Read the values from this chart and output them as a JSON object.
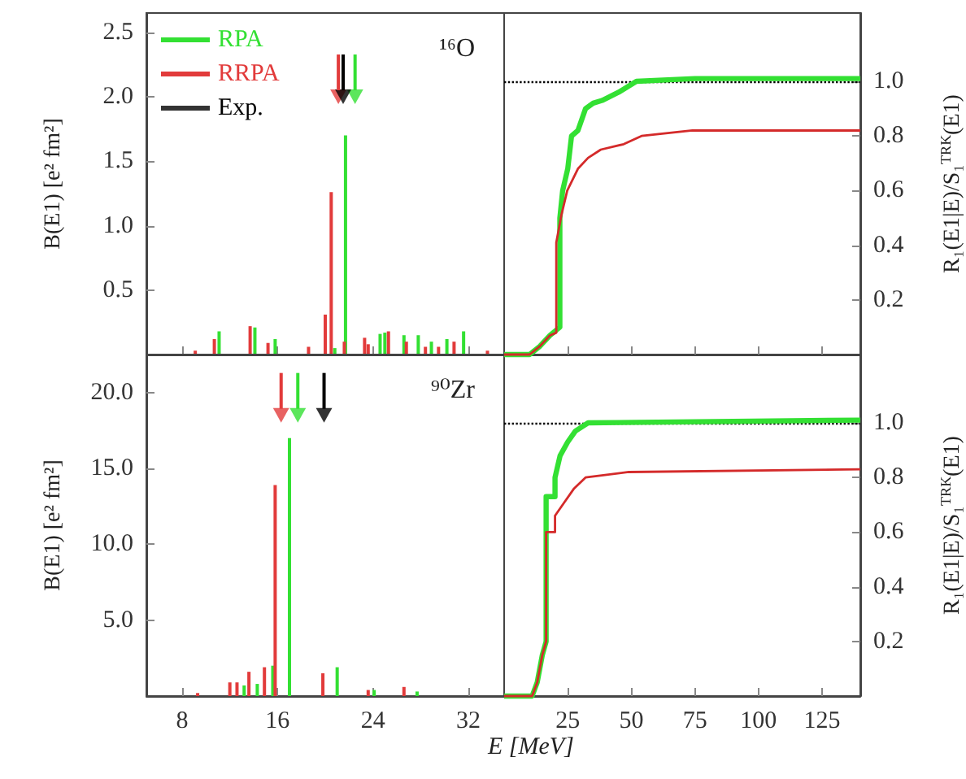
{
  "chart_data": [
    {
      "type": "bar",
      "legend": "top left",
      "ylabel": "B(E1) [e² fm²]",
      "annotations": [
        "¹⁶O"
      ],
      "tick_labels": "y",
      "xlim": [
        5,
        35
      ],
      "xticks": [
        8,
        16,
        24,
        32
      ],
      "ylim": [
        0,
        2.65
      ],
      "yticks": [
        0.5,
        {
          "value": 1,
          "label": "1.0"
        },
        1.5,
        {
          "value": 2,
          "label": "2.0"
        },
        2.5
      ],
      "series": [
        {
          "name": "RPA",
          "color": "#33e033",
          "x": [
            11.1,
            14.1,
            15.8,
            20.8,
            21.7,
            24.6,
            25.0,
            26.6,
            27.8,
            28.9,
            30.2,
            31.6
          ],
          "values": [
            0.18,
            0.21,
            0.12,
            0.05,
            1.7,
            0.16,
            0.17,
            0.15,
            0.15,
            0.1,
            0.12,
            0.18
          ]
        },
        {
          "name": "RRPA",
          "color": "#e23b3b",
          "x": [
            9.1,
            10.7,
            13.7,
            15.2,
            18.6,
            20.0,
            20.5,
            21.6,
            23.3,
            23.6,
            25.3,
            26.8,
            28.4,
            29.5,
            30.8,
            33.6
          ],
          "values": [
            0.03,
            0.12,
            0.22,
            0.09,
            0.06,
            0.31,
            1.26,
            0.1,
            0.13,
            0.08,
            0.18,
            0.1,
            0.06,
            0.06,
            0.1,
            0.03
          ]
        },
        {
          "type": "scatter",
          "marker": "triangle",
          "color": "#e23b3b",
          "x": [
            21.1
          ],
          "values": [
            2.0
          ]
        },
        {
          "type": "scatter",
          "marker": "triangle",
          "color": "#33e033",
          "x": [
            22.5
          ],
          "values": [
            2.0
          ]
        },
        {
          "name": "Exp.",
          "type": "scatter",
          "marker": "triangle",
          "color": "#000000",
          "x": [
            21.5
          ],
          "values": [
            2.0
          ]
        }
      ]
    },
    {
      "type": "line",
      "ylabel": "R₁(E1|E)/S₁$^{TRK}$(E1)",
      "tick_labels": "y",
      "xlim": [
        0,
        140
      ],
      "xticks": [
        25,
        50,
        75,
        100,
        125
      ],
      "ylim": [
        0,
        1.25
      ],
      "yticks": [
        0.2,
        0.4,
        0.6,
        0.8,
        {
          "value": 1,
          "label": "1.0"
        }
      ],
      "ref_lines": [
        {
          "axis": "y",
          "value": 1,
          "color": "#000000",
          "line_style": "dotted"
        }
      ],
      "series": [
        {
          "color": "#33e033",
          "x": [
            0,
            10,
            14,
            18,
            21.9,
            21.9,
            23,
            25,
            26.5,
            29,
            32,
            35,
            38.5,
            45,
            52,
            75,
            140
          ],
          "values": [
            0,
            0,
            0.03,
            0.07,
            0.1,
            0.5,
            0.6,
            0.68,
            0.8,
            0.82,
            0.9,
            0.92,
            0.93,
            0.96,
            1.0,
            1.01,
            1.01
          ]
        },
        {
          "color": "#d42a2a",
          "x": [
            0,
            10,
            14,
            18,
            20.5,
            20.5,
            22.5,
            24.8,
            29,
            33,
            38,
            47,
            54,
            74,
            140
          ],
          "values": [
            0,
            0,
            0.03,
            0.07,
            0.08,
            0.41,
            0.51,
            0.6,
            0.68,
            0.72,
            0.75,
            0.77,
            0.8,
            0.82,
            0.82
          ]
        }
      ]
    },
    {
      "type": "bar",
      "ylabel": "B(E1) [e² fm²]",
      "xlabel": "E [MeV]",
      "annotations": [
        "⁹⁰Zr"
      ],
      "xlim": [
        5,
        35
      ],
      "xticks": [
        8,
        16,
        24,
        32
      ],
      "ylim": [
        0,
        22.5
      ],
      "yticks": [
        {
          "value": 5,
          "label": "5.0"
        },
        {
          "value": 10,
          "label": "10.0"
        },
        {
          "value": 15,
          "label": "15.0"
        },
        {
          "value": 20,
          "label": "20.0"
        }
      ],
      "series": [
        {
          "color": "#33e033",
          "x": [
            13.2,
            14.3,
            15.6,
            17.0,
            21.0,
            24.1,
            27.7
          ],
          "values": [
            0.7,
            0.8,
            2.0,
            17.0,
            1.9,
            0.4,
            0.3
          ]
        },
        {
          "color": "#e23b3b",
          "x": [
            9.3,
            12.0,
            12.6,
            13.6,
            14.9,
            15.8,
            19.8,
            23.6,
            26.6
          ],
          "values": [
            0.2,
            0.9,
            0.9,
            1.6,
            1.9,
            13.9,
            1.5,
            0.4,
            0.6
          ]
        },
        {
          "type": "scatter",
          "marker": "triangle",
          "color": "#e23b3b",
          "x": [
            16.3
          ],
          "values": [
            18.5
          ]
        },
        {
          "type": "scatter",
          "marker": "triangle",
          "color": "#33e033",
          "x": [
            17.7
          ],
          "values": [
            18.5
          ]
        },
        {
          "type": "scatter",
          "marker": "triangle",
          "color": "#000000",
          "x": [
            19.9
          ],
          "values": [
            18.5
          ]
        }
      ]
    },
    {
      "type": "line",
      "ylabel": "R₁(E1|E)/S₁$^{TRK}$(E1)",
      "xlim": [
        0,
        140
      ],
      "xticks": [
        25,
        50,
        75,
        100,
        125
      ],
      "ylim": [
        0,
        1.25
      ],
      "yticks": [
        0.2,
        0.4,
        0.6,
        0.8,
        {
          "value": 1,
          "label": "1.0"
        }
      ],
      "ref_lines": [
        {
          "axis": "y",
          "value": 1,
          "color": "#000000",
          "line_style": "dotted"
        }
      ],
      "series": [
        {
          "color": "#33e033",
          "x": [
            0,
            11,
            13,
            15,
            16.5,
            16.5,
            20,
            20,
            22,
            25,
            28,
            33,
            140
          ],
          "values": [
            0,
            0,
            0.05,
            0.15,
            0.2,
            0.73,
            0.73,
            0.8,
            0.88,
            0.93,
            0.97,
            1.0,
            1.01
          ]
        },
        {
          "color": "#d42a2a",
          "x": [
            0,
            11,
            13,
            15,
            16.5,
            16.5,
            20,
            20,
            23,
            27.5,
            32,
            49,
            140
          ],
          "values": [
            0,
            0,
            0.05,
            0.15,
            0.2,
            0.6,
            0.6,
            0.66,
            0.7,
            0.76,
            0.8,
            0.82,
            0.83
          ]
        }
      ]
    }
  ]
}
